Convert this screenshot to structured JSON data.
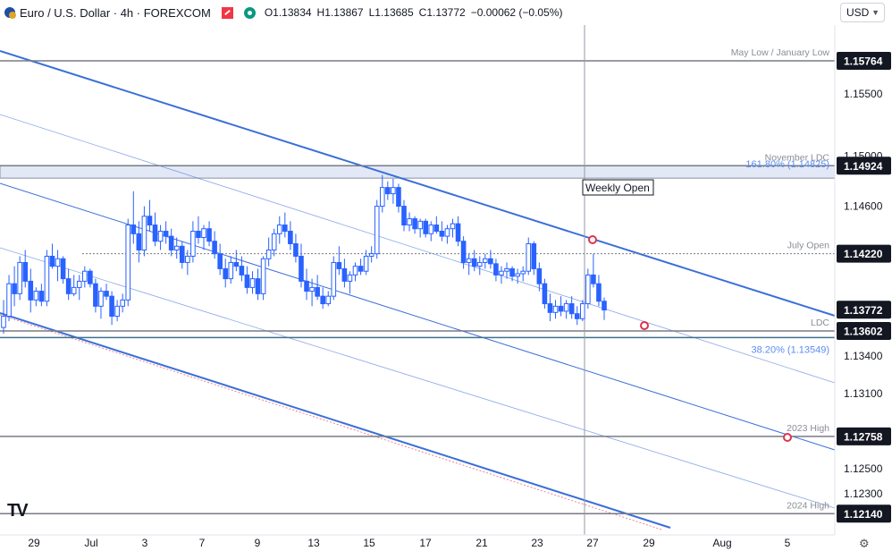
{
  "header": {
    "title": "Euro / U.S. Dollar · 4h · FOREXCOM",
    "open": "O1.13834",
    "high": "H1.13867",
    "low": "L1.13685",
    "close": "C1.13772",
    "change": "−0.00062 (−0.05%)",
    "currency": "USD"
  },
  "colors": {
    "up": "#2962ff",
    "down": "#2962ff",
    "channel": "#3a6fd8",
    "level": "#787b86",
    "last_price_tag": "#131722",
    "fib": "#5b8def",
    "zone": "#e3e8f7",
    "marker": "#e0334b"
  },
  "chart_data": {
    "type": "candlestick",
    "symbol": "EURUSD",
    "timeframe": "4h",
    "ylim": [
      1.1197,
      1.1605
    ],
    "y_ticks": [
      "1.15500",
      "1.15000",
      "1.14600",
      "1.13400",
      "1.13100",
      "1.12500",
      "1.12300"
    ],
    "x_ticks": [
      "29",
      "Jul",
      "3",
      "7",
      "9",
      "13",
      "15",
      "17",
      "21",
      "23",
      "27",
      "29",
      "Aug",
      "5"
    ],
    "price_tags": [
      {
        "value": "1.15764",
        "label": "May Low / January Low",
        "style": "dark"
      },
      {
        "value": "1.14924",
        "label": "November LDC",
        "style": "dark"
      },
      {
        "value": "1.14220",
        "label": "July Open",
        "style": "dark"
      },
      {
        "value": "1.13772",
        "label": "",
        "style": "last"
      },
      {
        "value": "1.13602",
        "label": "LDC",
        "style": "dark"
      },
      {
        "value": "1.12758",
        "label": "2023 High",
        "style": "dark"
      },
      {
        "value": "1.12140",
        "label": "2024 High",
        "style": "dark"
      }
    ],
    "fib_labels": [
      {
        "text": "161.80% (1.14825)",
        "value": 1.14825
      },
      {
        "text": "38.20% (1.13549)",
        "value": 1.13549
      }
    ],
    "annotation": "Weekly Open",
    "ohlc": [
      [
        1.1363,
        1.1385,
        1.1358,
        1.1372
      ],
      [
        1.1372,
        1.1405,
        1.1368,
        1.1398
      ],
      [
        1.1398,
        1.1412,
        1.138,
        1.139
      ],
      [
        1.139,
        1.142,
        1.1385,
        1.1415
      ],
      [
        1.1415,
        1.1425,
        1.1395,
        1.14
      ],
      [
        1.14,
        1.141,
        1.1375,
        1.1385
      ],
      [
        1.1385,
        1.1395,
        1.138,
        1.1392
      ],
      [
        1.1392,
        1.1398,
        1.138,
        1.1384
      ],
      [
        1.1384,
        1.1425,
        1.138,
        1.142
      ],
      [
        1.142,
        1.143,
        1.141,
        1.1412
      ],
      [
        1.1412,
        1.1425,
        1.14,
        1.1418
      ],
      [
        1.1418,
        1.142,
        1.1398,
        1.1402
      ],
      [
        1.1402,
        1.141,
        1.1385,
        1.139
      ],
      [
        1.139,
        1.1405,
        1.1388,
        1.1395
      ],
      [
        1.1395,
        1.1405,
        1.1385,
        1.14
      ],
      [
        1.14,
        1.1412,
        1.1395,
        1.1408
      ],
      [
        1.1408,
        1.141,
        1.1395,
        1.1398
      ],
      [
        1.1398,
        1.1402,
        1.1375,
        1.138
      ],
      [
        1.138,
        1.1395,
        1.137,
        1.1392
      ],
      [
        1.1392,
        1.1398,
        1.1385,
        1.1388
      ],
      [
        1.1388,
        1.1392,
        1.1365,
        1.1372
      ],
      [
        1.1372,
        1.1385,
        1.1368,
        1.138
      ],
      [
        1.138,
        1.139,
        1.1375,
        1.1385
      ],
      [
        1.1385,
        1.145,
        1.138,
        1.1445
      ],
      [
        1.1445,
        1.1472,
        1.143,
        1.1438
      ],
      [
        1.1438,
        1.1448,
        1.1415,
        1.1425
      ],
      [
        1.1425,
        1.146,
        1.142,
        1.1452
      ],
      [
        1.1452,
        1.1465,
        1.144,
        1.1445
      ],
      [
        1.1445,
        1.1455,
        1.1428,
        1.1432
      ],
      [
        1.1432,
        1.1445,
        1.1425,
        1.144
      ],
      [
        1.144,
        1.1448,
        1.143,
        1.1436
      ],
      [
        1.1436,
        1.1442,
        1.142,
        1.1425
      ],
      [
        1.1425,
        1.1435,
        1.1418,
        1.1428
      ],
      [
        1.1428,
        1.1432,
        1.141,
        1.1415
      ],
      [
        1.1415,
        1.1425,
        1.1405,
        1.142
      ],
      [
        1.142,
        1.1448,
        1.1415,
        1.144
      ],
      [
        1.144,
        1.1452,
        1.143,
        1.1435
      ],
      [
        1.1435,
        1.1445,
        1.1425,
        1.1442
      ],
      [
        1.1442,
        1.1448,
        1.1428,
        1.1432
      ],
      [
        1.1432,
        1.144,
        1.1418,
        1.1422
      ],
      [
        1.1422,
        1.143,
        1.1405,
        1.141
      ],
      [
        1.141,
        1.1418,
        1.1395,
        1.1402
      ],
      [
        1.1402,
        1.142,
        1.1398,
        1.1415
      ],
      [
        1.1415,
        1.1425,
        1.1408,
        1.1412
      ],
      [
        1.1412,
        1.142,
        1.14,
        1.1405
      ],
      [
        1.1405,
        1.1412,
        1.139,
        1.1395
      ],
      [
        1.1395,
        1.1408,
        1.139,
        1.1402
      ],
      [
        1.1402,
        1.141,
        1.1385,
        1.139
      ],
      [
        1.139,
        1.142,
        1.1385,
        1.1418
      ],
      [
        1.1418,
        1.1435,
        1.1412,
        1.1425
      ],
      [
        1.1425,
        1.1442,
        1.142,
        1.1438
      ],
      [
        1.1438,
        1.1452,
        1.143,
        1.1445
      ],
      [
        1.1445,
        1.1455,
        1.1435,
        1.144
      ],
      [
        1.144,
        1.1448,
        1.1425,
        1.143
      ],
      [
        1.143,
        1.1438,
        1.1415,
        1.142
      ],
      [
        1.142,
        1.143,
        1.1395,
        1.14
      ],
      [
        1.14,
        1.141,
        1.1385,
        1.1392
      ],
      [
        1.1392,
        1.1402,
        1.138,
        1.1395
      ],
      [
        1.1395,
        1.1405,
        1.1385,
        1.1388
      ],
      [
        1.1388,
        1.1395,
        1.1378,
        1.1382
      ],
      [
        1.1382,
        1.1392,
        1.138,
        1.1388
      ],
      [
        1.1388,
        1.142,
        1.1385,
        1.1415
      ],
      [
        1.1415,
        1.1428,
        1.1405,
        1.141
      ],
      [
        1.141,
        1.1418,
        1.1395,
        1.14
      ],
      [
        1.14,
        1.1408,
        1.139,
        1.1405
      ],
      [
        1.1405,
        1.1415,
        1.14,
        1.1412
      ],
      [
        1.1412,
        1.1418,
        1.1405,
        1.1408
      ],
      [
        1.1408,
        1.1425,
        1.1405,
        1.142
      ],
      [
        1.142,
        1.1428,
        1.1415,
        1.1422
      ],
      [
        1.1422,
        1.1465,
        1.1418,
        1.146
      ],
      [
        1.146,
        1.1485,
        1.1455,
        1.1475
      ],
      [
        1.1475,
        1.148,
        1.1465,
        1.147
      ],
      [
        1.147,
        1.1482,
        1.1462,
        1.1475
      ],
      [
        1.1475,
        1.1478,
        1.1455,
        1.146
      ],
      [
        1.146,
        1.1465,
        1.144,
        1.1445
      ],
      [
        1.1445,
        1.1455,
        1.144,
        1.145
      ],
      [
        1.145,
        1.1452,
        1.1438,
        1.1442
      ],
      [
        1.1442,
        1.145,
        1.1435,
        1.1448
      ],
      [
        1.1448,
        1.145,
        1.1435,
        1.1438
      ],
      [
        1.1438,
        1.1448,
        1.1432,
        1.1445
      ],
      [
        1.1445,
        1.1452,
        1.1438,
        1.144
      ],
      [
        1.144,
        1.1448,
        1.1432,
        1.1436
      ],
      [
        1.1436,
        1.1445,
        1.143,
        1.1442
      ],
      [
        1.1442,
        1.145,
        1.1435,
        1.1446
      ],
      [
        1.1446,
        1.1452,
        1.1428,
        1.1432
      ],
      [
        1.1432,
        1.1436,
        1.141,
        1.1415
      ],
      [
        1.1415,
        1.1422,
        1.1405,
        1.1418
      ],
      [
        1.1418,
        1.1425,
        1.1408,
        1.1412
      ],
      [
        1.1412,
        1.142,
        1.1405,
        1.1415
      ],
      [
        1.1415,
        1.1422,
        1.141,
        1.1418
      ],
      [
        1.1418,
        1.1425,
        1.141,
        1.1414
      ],
      [
        1.1414,
        1.1418,
        1.14,
        1.1405
      ],
      [
        1.1405,
        1.1412,
        1.1398,
        1.1408
      ],
      [
        1.1408,
        1.1415,
        1.1402,
        1.141
      ],
      [
        1.141,
        1.1412,
        1.14,
        1.1404
      ],
      [
        1.1404,
        1.141,
        1.1398,
        1.1406
      ],
      [
        1.1406,
        1.1412,
        1.14,
        1.1408
      ],
      [
        1.1408,
        1.1435,
        1.1405,
        1.143
      ],
      [
        1.143,
        1.1432,
        1.1405,
        1.141
      ],
      [
        1.141,
        1.1415,
        1.1392,
        1.1398
      ],
      [
        1.1398,
        1.1402,
        1.1378,
        1.1382
      ],
      [
        1.1382,
        1.139,
        1.1368,
        1.1375
      ],
      [
        1.1375,
        1.1385,
        1.137,
        1.138
      ],
      [
        1.138,
        1.1388,
        1.1372,
        1.1376
      ],
      [
        1.1376,
        1.1385,
        1.137,
        1.1382
      ],
      [
        1.1382,
        1.1388,
        1.137,
        1.1374
      ],
      [
        1.1374,
        1.138,
        1.1365,
        1.137
      ],
      [
        1.137,
        1.1385,
        1.1368,
        1.1382
      ],
      [
        1.1382,
        1.141,
        1.1378,
        1.1405
      ],
      [
        1.1405,
        1.1422,
        1.1395,
        1.1398
      ],
      [
        1.1398,
        1.1405,
        1.138,
        1.1384
      ],
      [
        1.1384,
        1.1387,
        1.1369,
        1.1377
      ]
    ]
  }
}
